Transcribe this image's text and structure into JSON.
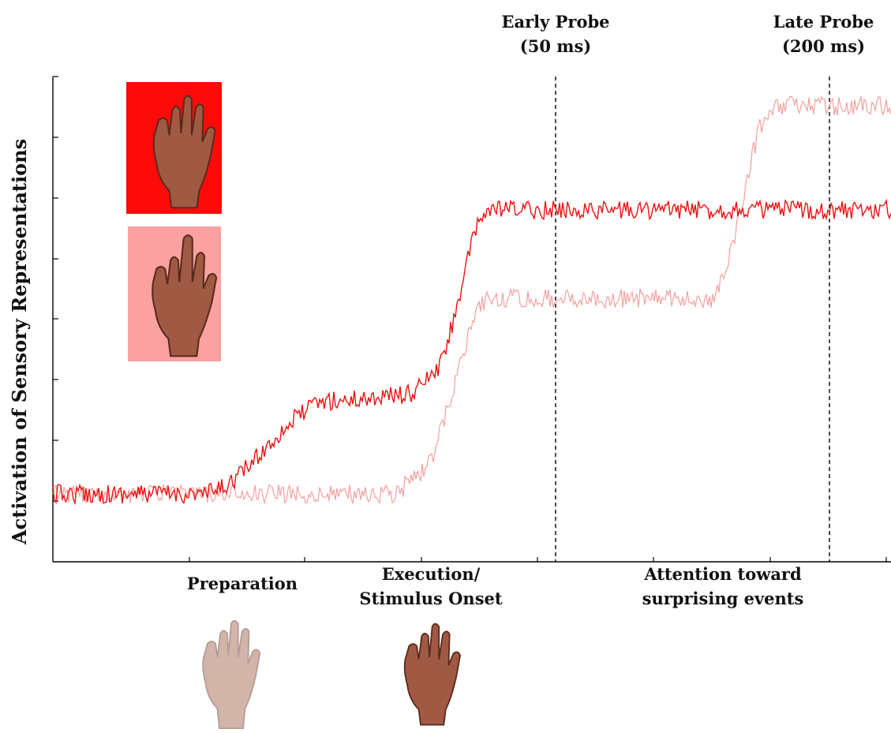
{
  "y_axis_label": "Activation of Sensory Representations",
  "probes": [
    {
      "line1": "Early Probe",
      "line2": "(50 ms)"
    },
    {
      "line1": "Late Probe",
      "line2": "(200 ms)"
    }
  ],
  "phases": {
    "preparation": "Preparation",
    "execution_line1": "Execution/",
    "execution_line2": "Stimulus Onset",
    "attention_line1": "Attention toward",
    "attention_line2": "surprising events"
  },
  "colors": {
    "strong_trace": "#ee1111",
    "faint_trace": "#f4a0a0",
    "strong_swatch": "#ff0a0a",
    "faint_swatch": "#fba1a1",
    "hand_skin": "#a05a43",
    "hand_shadow": "#5a2a1c"
  },
  "icons": {
    "legend_strong": "index-finger-raised-hand-icon",
    "legend_faint": "middle-finger-raised-hand-icon",
    "preparation": "faded-hand-icon",
    "execution": "index-finger-raised-hand-icon"
  }
}
